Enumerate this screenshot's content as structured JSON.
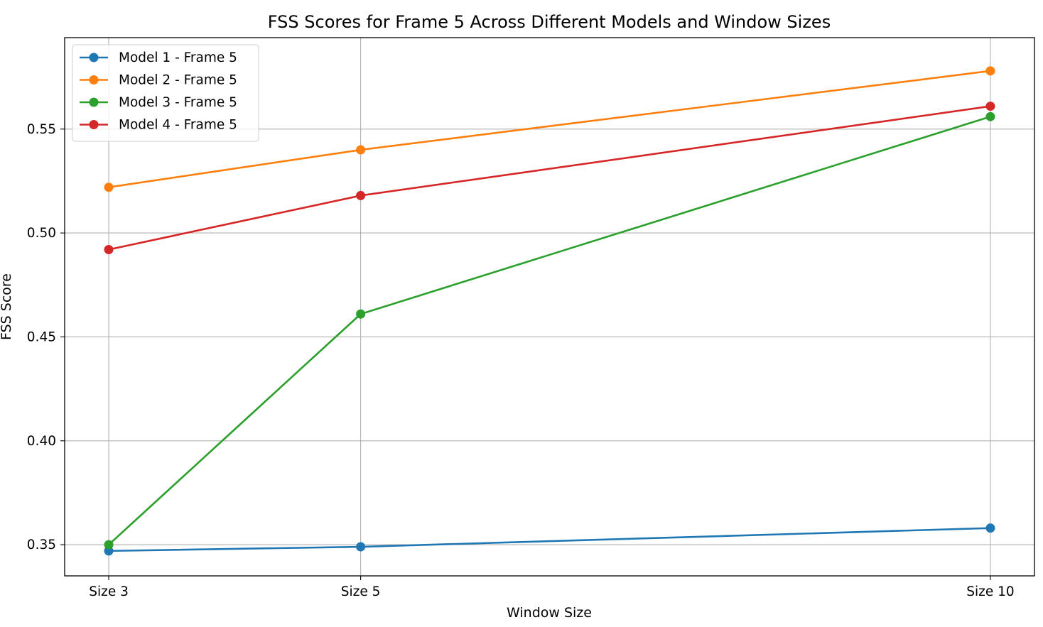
{
  "chart_data": {
    "type": "line",
    "title": "FSS Scores for Frame 5 Across Different Models and Window Sizes",
    "xlabel": "Window Size",
    "ylabel": "FSS Score",
    "categories": [
      "Size 3",
      "Size 5",
      "Size 10"
    ],
    "x": [
      3,
      5,
      10
    ],
    "ylim": [
      0.335,
      0.594
    ],
    "yticks": [
      0.35,
      0.4,
      0.45,
      0.5,
      0.55
    ],
    "ytick_labels": [
      "0.35",
      "0.40",
      "0.45",
      "0.50",
      "0.55"
    ],
    "grid": true,
    "legend_position": "upper-left",
    "series": [
      {
        "name": "Model 1 - Frame 5",
        "color": "#1f77b4",
        "values": [
          0.347,
          0.349,
          0.358
        ]
      },
      {
        "name": "Model 2 - Frame 5",
        "color": "#ff7f0e",
        "values": [
          0.522,
          0.54,
          0.578
        ]
      },
      {
        "name": "Model 3 - Frame 5",
        "color": "#2ca02c",
        "values": [
          0.35,
          0.461,
          0.556
        ]
      },
      {
        "name": "Model 4 - Frame 5",
        "color": "#d62728",
        "values": [
          0.492,
          0.518,
          0.561
        ]
      }
    ]
  }
}
